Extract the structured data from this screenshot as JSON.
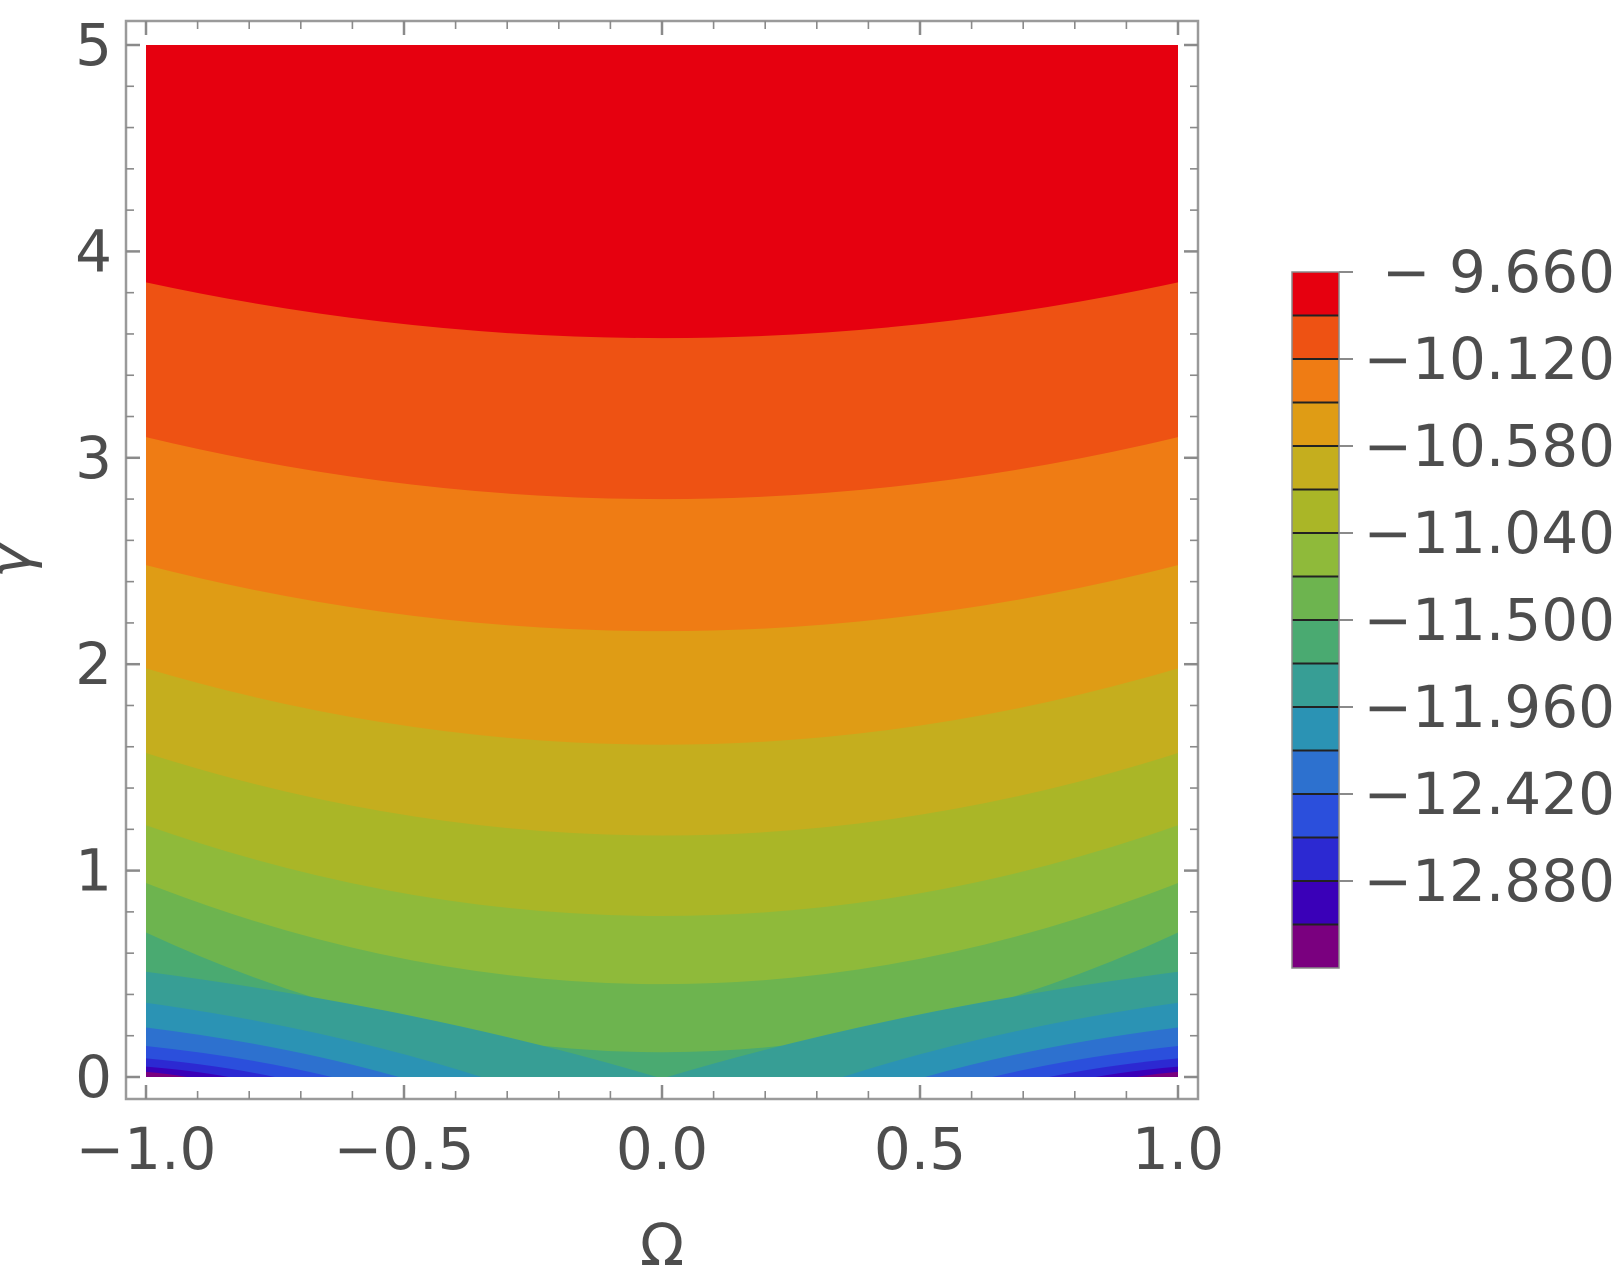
{
  "chart_data": {
    "type": "heatmap",
    "subtype": "filled-contour",
    "title": "",
    "xlabel": "Ω",
    "ylabel": "γ",
    "xlim": [
      -1.0,
      1.0
    ],
    "ylim": [
      0,
      5
    ],
    "x_ticks": [
      "−1.0",
      "−0.5",
      "0.0",
      "0.5",
      "1.0"
    ],
    "x_tick_values": [
      -1.0,
      -0.5,
      0.0,
      0.5,
      1.0
    ],
    "y_ticks": [
      "0",
      "1",
      "2",
      "3",
      "4",
      "5"
    ],
    "y_tick_values": [
      0,
      1,
      2,
      3,
      4,
      5
    ],
    "grid": false,
    "legend_position": "right",
    "contour_levels": [
      -13.11,
      -12.88,
      -12.65,
      -12.42,
      -12.19,
      -11.96,
      -11.73,
      -11.5,
      -11.27,
      -11.04,
      -10.81,
      -10.58,
      -10.35,
      -10.12,
      -9.89,
      -9.66
    ],
    "level_colors": [
      "#7a007f",
      "#3a00b8",
      "#2c29d2",
      "#2b4fdc",
      "#2d71cf",
      "#2b93b4",
      "#379e95",
      "#4aaa71",
      "#6db44f",
      "#8fba3a",
      "#aab627",
      "#c5ae1e",
      "#df9c15",
      "#ef7c14",
      "#ee5213",
      "#e6000f"
    ],
    "colorbar_labels": [
      "− 9.660",
      "−10.120",
      "−10.580",
      "−11.040",
      "−11.500",
      "−11.960",
      "−12.420",
      "−12.880"
    ],
    "colorbar_label_values": [
      -9.66,
      -10.12,
      -10.58,
      -11.04,
      -11.5,
      -11.96,
      -12.42,
      -12.88
    ],
    "contour_lines": [
      {
        "level": -9.66,
        "y_at_center": 3.58,
        "y_at_edge": 3.85
      },
      {
        "level": -9.89,
        "y_at_center": 2.8,
        "y_at_edge": 3.1
      },
      {
        "level": -10.12,
        "y_at_center": 2.16,
        "y_at_edge": 2.48
      },
      {
        "level": -10.35,
        "y_at_center": 1.61,
        "y_at_edge": 1.98
      },
      {
        "level": -10.58,
        "y_at_center": 1.17,
        "y_at_edge": 1.57
      },
      {
        "level": -10.81,
        "y_at_center": 0.78,
        "y_at_edge": 1.22
      },
      {
        "level": -11.04,
        "y_at_center": 0.45,
        "y_at_edge": 0.94
      },
      {
        "level": -11.27,
        "y_at_center": 0.12,
        "y_at_edge": 0.7
      }
    ],
    "bottom_contours": [
      {
        "level": -11.5,
        "x_at_bottom": 0.99,
        "y_at_edge": 0.51
      },
      {
        "level": -11.73,
        "x_at_bottom": 0.65,
        "y_at_edge": 0.36
      },
      {
        "level": -11.96,
        "x_at_bottom": 0.49,
        "y_at_edge": 0.24
      },
      {
        "level": -12.19,
        "x_at_bottom": 0.36,
        "y_at_edge": 0.15
      },
      {
        "level": -12.42,
        "x_at_bottom": 0.25,
        "y_at_edge": 0.09
      },
      {
        "level": -12.65,
        "x_at_bottom": 0.16,
        "y_at_edge": 0.05
      },
      {
        "level": -12.88,
        "x_at_bottom": 0.08,
        "y_at_edge": 0.025
      },
      {
        "level": -13.11,
        "x_at_bottom": 0.03,
        "y_at_edge": 0.01
      }
    ]
  }
}
